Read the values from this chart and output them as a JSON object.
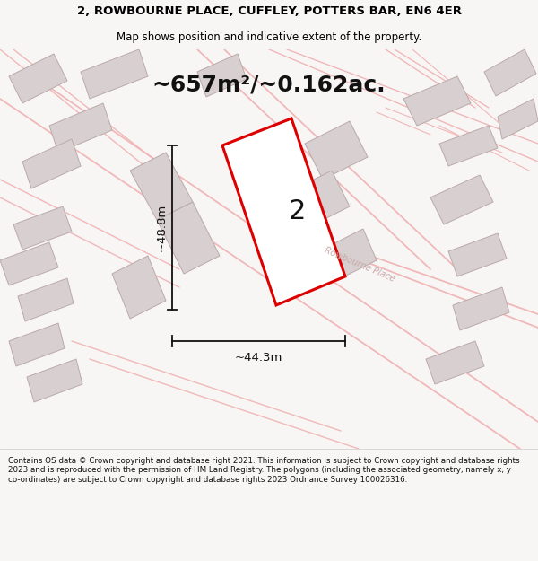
{
  "title_line1": "2, ROWBOURNE PLACE, CUFFLEY, POTTERS BAR, EN6 4ER",
  "title_line2": "Map shows position and indicative extent of the property.",
  "area_text": "~657m²/~0.162ac.",
  "label_number": "2",
  "dim_vertical": "~48.8m",
  "dim_horizontal": "~44.3m",
  "footer_text": "Contains OS data © Crown copyright and database right 2021. This information is subject to Crown copyright and database rights 2023 and is reproduced with the permission of HM Land Registry. The polygons (including the associated geometry, namely x, y co-ordinates) are subject to Crown copyright and database rights 2023 Ordnance Survey 100026316.",
  "bg_color": "#f8f5f5",
  "plot_fill": "#ffffff",
  "plot_edge": "#dd0000",
  "road_color": "#f0b8b8",
  "building_fill": "#d8d0d0",
  "building_edge": "#bbaaaa",
  "street_label": "Rowbourne Place"
}
